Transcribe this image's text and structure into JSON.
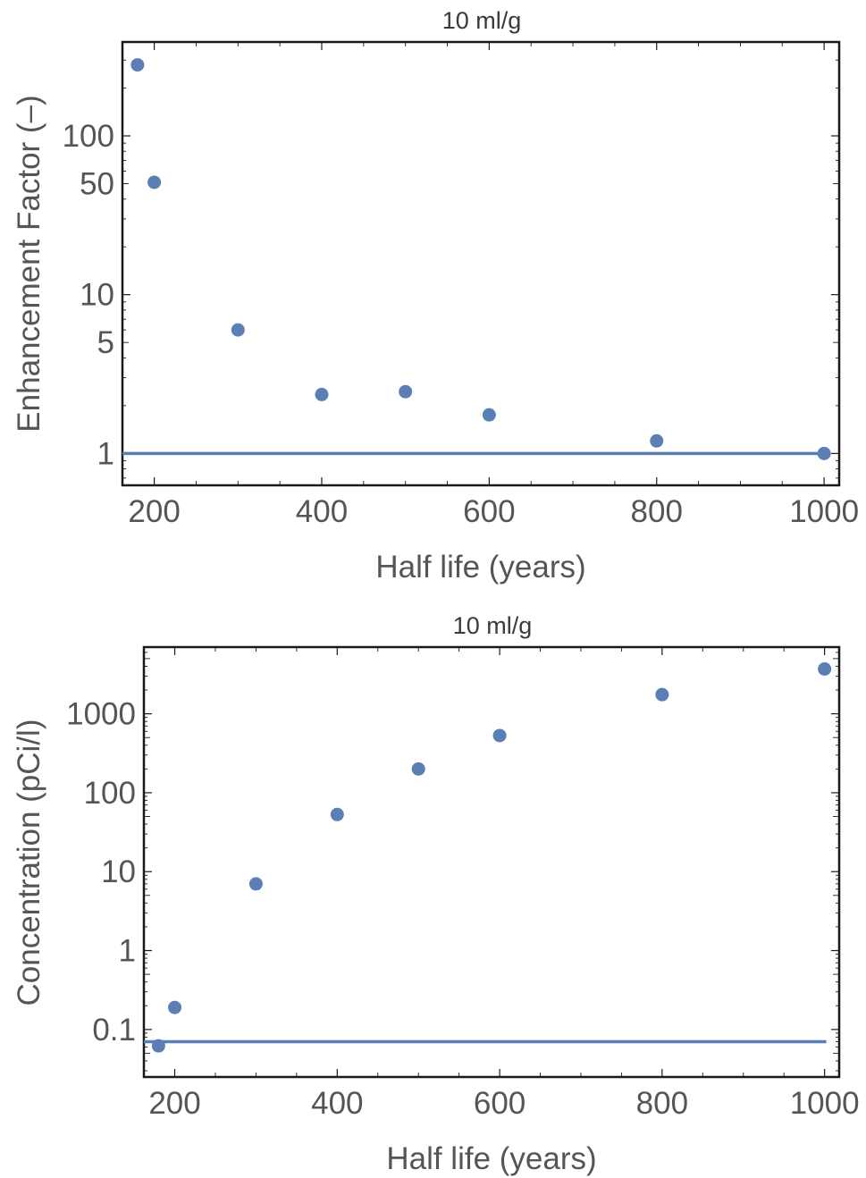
{
  "chart_data": [
    {
      "type": "scatter",
      "title": "10 ml/g",
      "xlabel": "Half life (years)",
      "ylabel": "Enhancement Factor (–)",
      "xlim": [
        162,
        1018
      ],
      "ylim": [
        0.63,
        390
      ],
      "y_scale": "log",
      "x_ticks": [
        200,
        400,
        600,
        800,
        1000
      ],
      "y_ticks": [
        1,
        5,
        10,
        50,
        100
      ],
      "series": [
        {
          "color": "#5b7fb4",
          "points": [
            {
              "x": 180,
              "y": 280
            },
            {
              "x": 200,
              "y": 51
            },
            {
              "x": 300,
              "y": 6
            },
            {
              "x": 400,
              "y": 2.35
            },
            {
              "x": 500,
              "y": 2.45
            },
            {
              "x": 600,
              "y": 1.75
            },
            {
              "x": 800,
              "y": 1.2
            },
            {
              "x": 1000,
              "y": 1.0
            }
          ]
        }
      ],
      "reference_line": {
        "y": 1,
        "color": "#5b7fb4"
      }
    },
    {
      "type": "scatter",
      "title": "10 ml/g",
      "xlabel": "Half life (years)",
      "ylabel": "Concentration (pCi/l)",
      "xlim": [
        162,
        1018
      ],
      "ylim": [
        0.025,
        7000
      ],
      "y_scale": "log",
      "x_ticks": [
        200,
        400,
        600,
        800,
        1000
      ],
      "y_ticks": [
        0.1,
        1,
        10,
        100,
        1000
      ],
      "series": [
        {
          "color": "#5b7fb4",
          "points": [
            {
              "x": 180,
              "y": 0.062
            },
            {
              "x": 200,
              "y": 0.19
            },
            {
              "x": 300,
              "y": 7
            },
            {
              "x": 400,
              "y": 53
            },
            {
              "x": 500,
              "y": 200
            },
            {
              "x": 600,
              "y": 530
            },
            {
              "x": 800,
              "y": 1750
            },
            {
              "x": 1000,
              "y": 3700
            }
          ]
        }
      ],
      "reference_line": {
        "y": 0.07,
        "color": "#5b7fb4"
      }
    }
  ]
}
